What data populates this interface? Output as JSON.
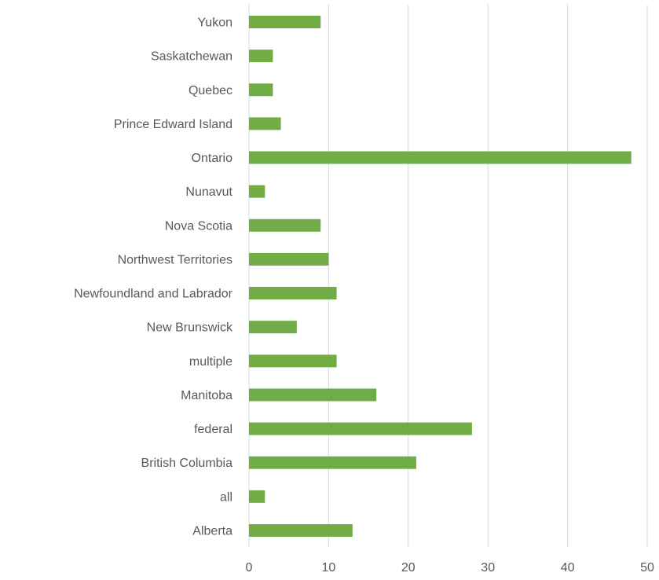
{
  "chart_data": {
    "type": "bar",
    "orientation": "horizontal",
    "categories": [
      "Yukon",
      "Saskatchewan",
      "Quebec",
      "Prince Edward Island",
      "Ontario",
      "Nunavut",
      "Nova Scotia",
      "Northwest Territories",
      "Newfoundland and Labrador",
      "New Brunswick",
      "multiple",
      "Manitoba",
      "federal",
      "British Columbia",
      "all",
      "Alberta"
    ],
    "values": [
      9,
      3,
      3,
      4,
      48,
      2,
      9,
      10,
      11,
      6,
      11,
      16,
      28,
      21,
      2,
      13
    ],
    "xticks": [
      "0",
      "10",
      "20",
      "30",
      "40",
      "50"
    ],
    "xlim": [
      0,
      50
    ],
    "grid": "vertical",
    "legend": "none",
    "bar_color": "#70ad47",
    "title": "",
    "xlabel": "",
    "ylabel": ""
  }
}
